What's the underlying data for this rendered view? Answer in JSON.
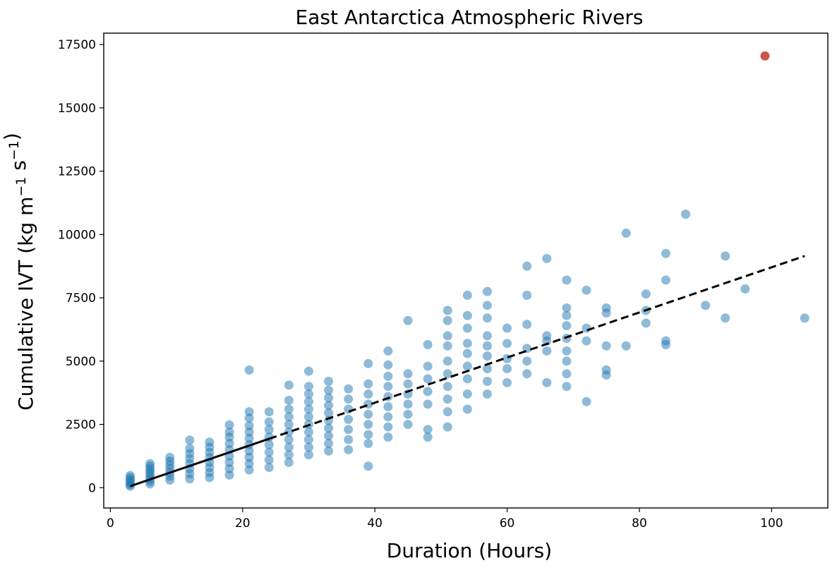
{
  "chart_data": {
    "type": "scatter",
    "title": "East Antarctica Atmospheric Rivers",
    "xlabel": "Duration (Hours)",
    "ylabel": "Cumulative IVT (kg m⁻¹ s⁻¹)",
    "xlim": [
      -1,
      108.5
    ],
    "ylim": [
      -800,
      17950
    ],
    "xticks": [
      0,
      20,
      40,
      60,
      80,
      100
    ],
    "yticks": [
      0,
      2500,
      5000,
      7500,
      10000,
      12500,
      15000,
      17500
    ],
    "grid": false,
    "colors": {
      "points": "#1f77b4",
      "highlight": "#c0392b",
      "fit_line": "#000000"
    },
    "series": [
      {
        "points": [
          [
            3,
            120
          ],
          [
            3,
            180
          ],
          [
            3,
            250
          ],
          [
            3,
            320
          ],
          [
            3,
            400
          ],
          [
            3,
            480
          ],
          [
            3,
            60
          ],
          [
            6,
            150
          ],
          [
            6,
            250
          ],
          [
            6,
            350
          ],
          [
            6,
            450
          ],
          [
            6,
            550
          ],
          [
            6,
            650
          ],
          [
            6,
            750
          ],
          [
            6,
            850
          ],
          [
            6,
            950
          ],
          [
            9,
            300
          ],
          [
            9,
            450
          ],
          [
            9,
            600
          ],
          [
            9,
            750
          ],
          [
            9,
            900
          ],
          [
            9,
            1050
          ],
          [
            9,
            1200
          ],
          [
            12,
            350
          ],
          [
            12,
            550
          ],
          [
            12,
            750
          ],
          [
            12,
            950
          ],
          [
            12,
            1150
          ],
          [
            12,
            1350
          ],
          [
            12,
            1550
          ],
          [
            12,
            1880
          ],
          [
            15,
            400
          ],
          [
            15,
            600
          ],
          [
            15,
            800
          ],
          [
            15,
            1000
          ],
          [
            15,
            1200
          ],
          [
            15,
            1400
          ],
          [
            15,
            1600
          ],
          [
            15,
            1800
          ],
          [
            18,
            500
          ],
          [
            18,
            750
          ],
          [
            18,
            1000
          ],
          [
            18,
            1250
          ],
          [
            18,
            1500
          ],
          [
            18,
            1750
          ],
          [
            18,
            2000
          ],
          [
            18,
            2200
          ],
          [
            18,
            2480
          ],
          [
            21,
            700
          ],
          [
            21,
            950
          ],
          [
            21,
            1200
          ],
          [
            21,
            1450
          ],
          [
            21,
            1700
          ],
          [
            21,
            1950
          ],
          [
            21,
            2200
          ],
          [
            21,
            2450
          ],
          [
            21,
            2750
          ],
          [
            21,
            3000
          ],
          [
            21,
            4650
          ],
          [
            24,
            800
          ],
          [
            24,
            1100
          ],
          [
            24,
            1400
          ],
          [
            24,
            1700
          ],
          [
            24,
            2000
          ],
          [
            24,
            2300
          ],
          [
            24,
            2600
          ],
          [
            24,
            3000
          ],
          [
            27,
            1000
          ],
          [
            27,
            1300
          ],
          [
            27,
            1600
          ],
          [
            27,
            1900
          ],
          [
            27,
            2200
          ],
          [
            27,
            2500
          ],
          [
            27,
            2800
          ],
          [
            27,
            3100
          ],
          [
            27,
            3450
          ],
          [
            27,
            4050
          ],
          [
            30,
            1300
          ],
          [
            30,
            1600
          ],
          [
            30,
            1900
          ],
          [
            30,
            2200
          ],
          [
            30,
            2500
          ],
          [
            30,
            2800
          ],
          [
            30,
            3100
          ],
          [
            30,
            3400
          ],
          [
            30,
            3700
          ],
          [
            30,
            4000
          ],
          [
            30,
            4600
          ],
          [
            33,
            1450
          ],
          [
            33,
            1750
          ],
          [
            33,
            2050
          ],
          [
            33,
            2350
          ],
          [
            33,
            2650
          ],
          [
            33,
            2950
          ],
          [
            33,
            3250
          ],
          [
            33,
            3550
          ],
          [
            33,
            3850
          ],
          [
            33,
            4200
          ],
          [
            36,
            1500
          ],
          [
            36,
            1900
          ],
          [
            36,
            2300
          ],
          [
            36,
            2700
          ],
          [
            36,
            3100
          ],
          [
            36,
            3500
          ],
          [
            36,
            3900
          ],
          [
            39,
            850
          ],
          [
            39,
            1750
          ],
          [
            39,
            2100
          ],
          [
            39,
            2500
          ],
          [
            39,
            2900
          ],
          [
            39,
            3300
          ],
          [
            39,
            3700
          ],
          [
            39,
            4100
          ],
          [
            39,
            4900
          ],
          [
            42,
            2000
          ],
          [
            42,
            2400
          ],
          [
            42,
            2800
          ],
          [
            42,
            3200
          ],
          [
            42,
            3600
          ],
          [
            42,
            4000
          ],
          [
            42,
            4400
          ],
          [
            42,
            4850
          ],
          [
            42,
            5400
          ],
          [
            45,
            2500
          ],
          [
            45,
            2900
          ],
          [
            45,
            3300
          ],
          [
            45,
            3700
          ],
          [
            45,
            4100
          ],
          [
            45,
            4500
          ],
          [
            45,
            6600
          ],
          [
            48,
            2000
          ],
          [
            48,
            2300
          ],
          [
            48,
            3300
          ],
          [
            48,
            3800
          ],
          [
            48,
            4300
          ],
          [
            48,
            4800
          ],
          [
            48,
            5650
          ],
          [
            51,
            2400
          ],
          [
            51,
            3000
          ],
          [
            51,
            3500
          ],
          [
            51,
            4000
          ],
          [
            51,
            4500
          ],
          [
            51,
            5000
          ],
          [
            51,
            5600
          ],
          [
            51,
            6000
          ],
          [
            51,
            6600
          ],
          [
            51,
            7000
          ],
          [
            54,
            3100
          ],
          [
            54,
            3700
          ],
          [
            54,
            4300
          ],
          [
            54,
            4800
          ],
          [
            54,
            5300
          ],
          [
            54,
            5700
          ],
          [
            54,
            6300
          ],
          [
            54,
            6800
          ],
          [
            54,
            7600
          ],
          [
            57,
            3700
          ],
          [
            57,
            4200
          ],
          [
            57,
            4700
          ],
          [
            57,
            5200
          ],
          [
            57,
            5600
          ],
          [
            57,
            6000
          ],
          [
            57,
            6700
          ],
          [
            57,
            7200
          ],
          [
            57,
            7750
          ],
          [
            60,
            4150
          ],
          [
            60,
            4700
          ],
          [
            60,
            5100
          ],
          [
            60,
            5700
          ],
          [
            60,
            6300
          ],
          [
            63,
            4500
          ],
          [
            63,
            5000
          ],
          [
            63,
            5500
          ],
          [
            63,
            6450
          ],
          [
            63,
            7600
          ],
          [
            63,
            8750
          ],
          [
            66,
            4150
          ],
          [
            66,
            5400
          ],
          [
            66,
            5800
          ],
          [
            66,
            6000
          ],
          [
            66,
            9050
          ],
          [
            69,
            4000
          ],
          [
            69,
            4500
          ],
          [
            69,
            5000
          ],
          [
            69,
            5400
          ],
          [
            69,
            5900
          ],
          [
            69,
            6400
          ],
          [
            69,
            6800
          ],
          [
            69,
            7100
          ],
          [
            69,
            8200
          ],
          [
            72,
            3400
          ],
          [
            72,
            5800
          ],
          [
            72,
            6300
          ],
          [
            72,
            7800
          ],
          [
            75,
            4450
          ],
          [
            75,
            4650
          ],
          [
            75,
            5600
          ],
          [
            75,
            6900
          ],
          [
            75,
            7100
          ],
          [
            78,
            5600
          ],
          [
            78,
            10050
          ],
          [
            81,
            6500
          ],
          [
            81,
            7000
          ],
          [
            81,
            7650
          ],
          [
            84,
            5650
          ],
          [
            84,
            5800
          ],
          [
            84,
            8200
          ],
          [
            84,
            9250
          ],
          [
            87,
            10800
          ],
          [
            90,
            7200
          ],
          [
            93,
            6700
          ],
          [
            93,
            9150
          ],
          [
            96,
            7850
          ],
          [
            105,
            6700
          ]
        ]
      },
      {
        "points": [
          [
            99,
            17050
          ]
        ]
      }
    ],
    "fit_line": {
      "x": [
        3,
        105
      ],
      "y": [
        60,
        9150
      ]
    }
  }
}
